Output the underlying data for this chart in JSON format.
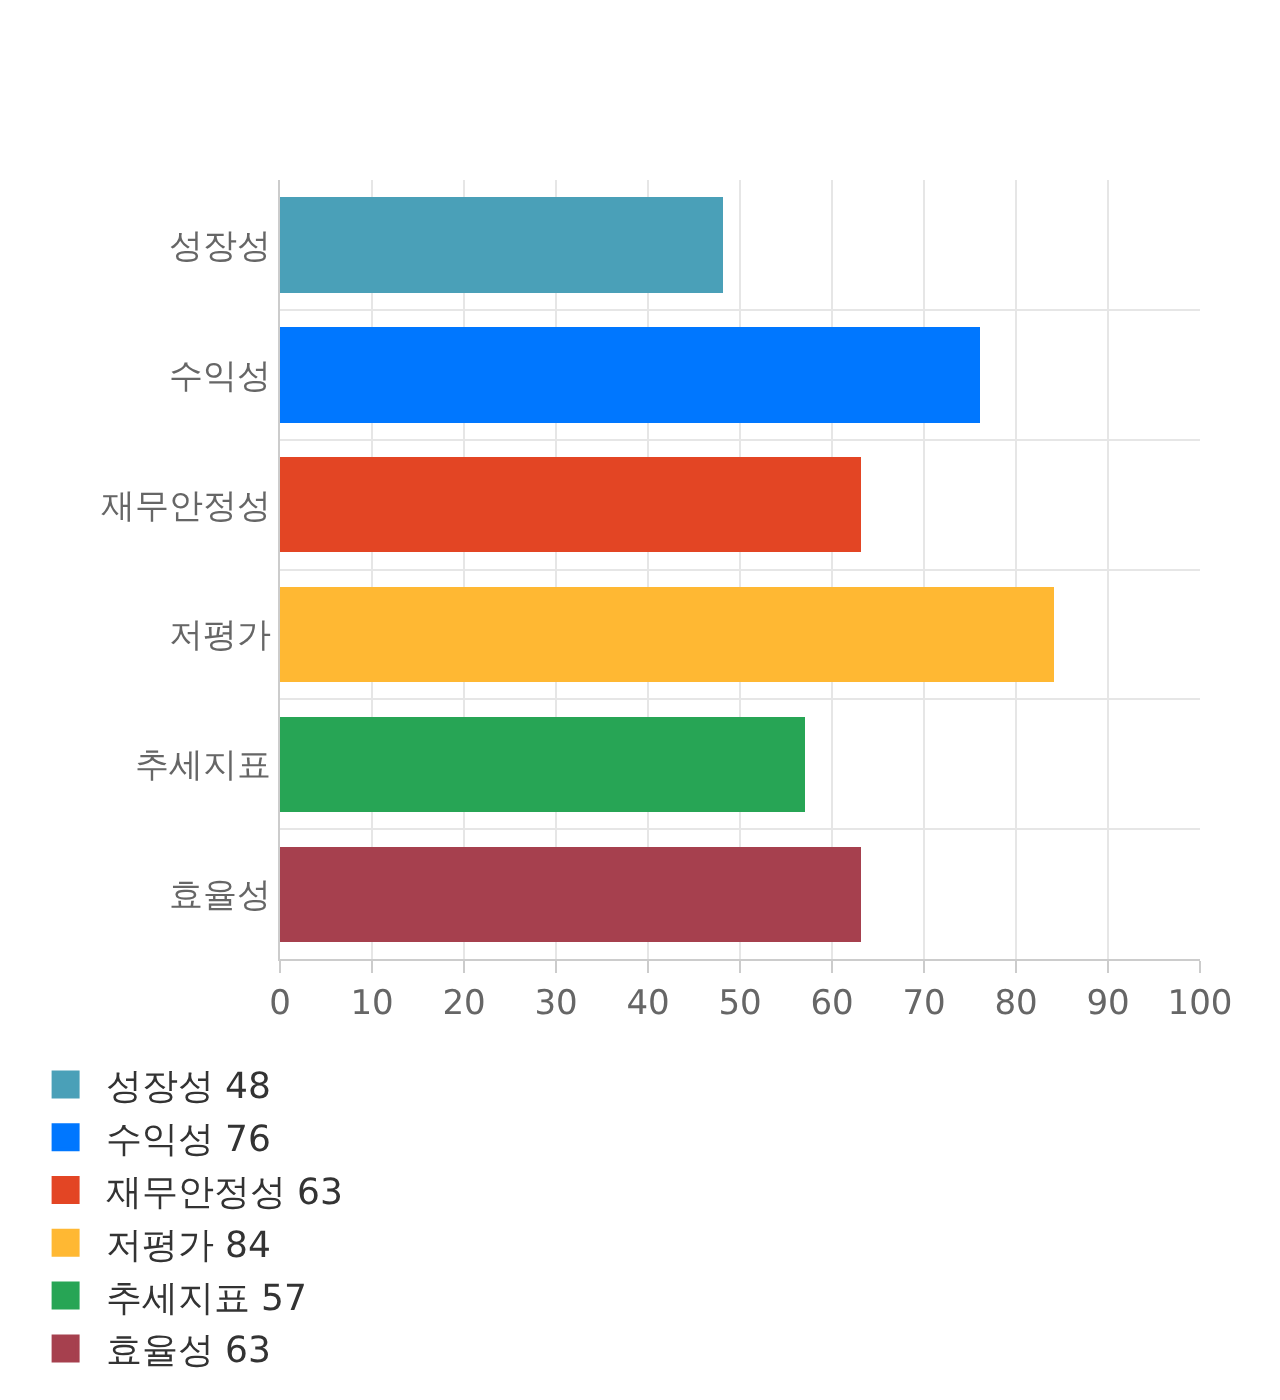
{
  "chart_data": {
    "type": "bar",
    "orientation": "horizontal",
    "stacked": true,
    "categories": [
      "성장성",
      "수익성",
      "재무안정성",
      "저평가",
      "추세지표",
      "효율성"
    ],
    "series": [
      {
        "name": "성장성 48",
        "color": "#4aa0b8",
        "values": [
          48,
          null,
          null,
          null,
          null,
          null
        ]
      },
      {
        "name": "수익성 76",
        "color": "#0077ff",
        "values": [
          null,
          76,
          null,
          null,
          null,
          null
        ]
      },
      {
        "name": "재무안정성 63",
        "color": "#e34524",
        "values": [
          null,
          null,
          63,
          null,
          null,
          null
        ]
      },
      {
        "name": "저평가 84",
        "color": "#ffb833",
        "values": [
          null,
          null,
          null,
          84,
          null,
          null
        ]
      },
      {
        "name": "추세지표 57",
        "color": "#27a555",
        "values": [
          null,
          null,
          null,
          null,
          57,
          null
        ]
      },
      {
        "name": "효율성 63",
        "color": "#a6404e",
        "values": [
          null,
          null,
          null,
          null,
          null,
          63
        ]
      }
    ],
    "xlim": [
      0,
      100
    ],
    "xticks": [
      0,
      10,
      20,
      30,
      40,
      50,
      60,
      70,
      80,
      90,
      100
    ],
    "grid": true,
    "legend": "bottom"
  }
}
